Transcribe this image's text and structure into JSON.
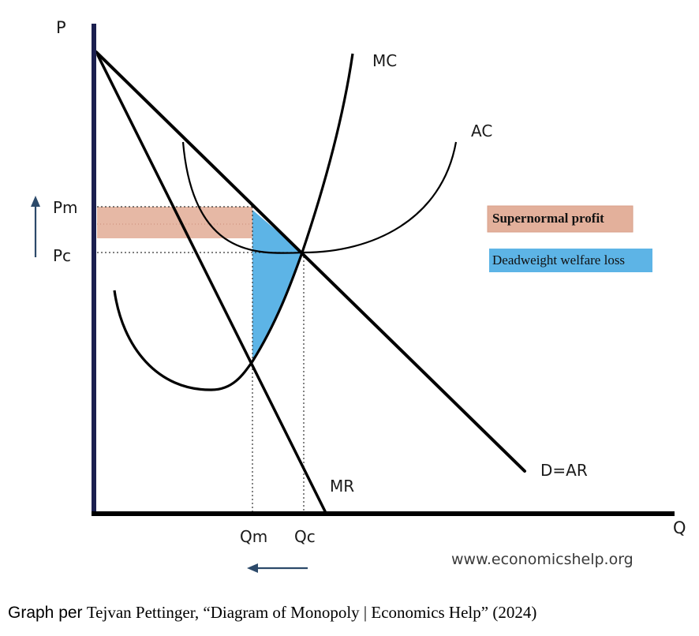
{
  "diagram": {
    "title": "Diagram of Monopoly",
    "axes": {
      "y_label": "P",
      "x_label": "Q"
    },
    "price_labels": {
      "monopoly": "Pm",
      "competitive": "Pc"
    },
    "quantity_labels": {
      "monopoly": "Qm",
      "competitive": "Qc"
    },
    "curve_labels": {
      "mc": "MC",
      "ac": "AC",
      "demand": "D=AR",
      "mr": "MR"
    },
    "legend": {
      "supernormal_profit": "Supernormal profit",
      "deadweight_loss": "Deadweight welfare loss"
    },
    "source_site": "www.economicshelp.org",
    "colors": {
      "axis": "#1b1f4f",
      "curve": "#000000",
      "profit": "#e3b09b",
      "deadweight": "#5db4e6",
      "arrow": "#2c4a6a"
    }
  },
  "caption": {
    "prefix": "Graph per",
    "citation": "Tejvan Pettinger, “Diagram of Monopoly | Economics Help” (2024)"
  }
}
